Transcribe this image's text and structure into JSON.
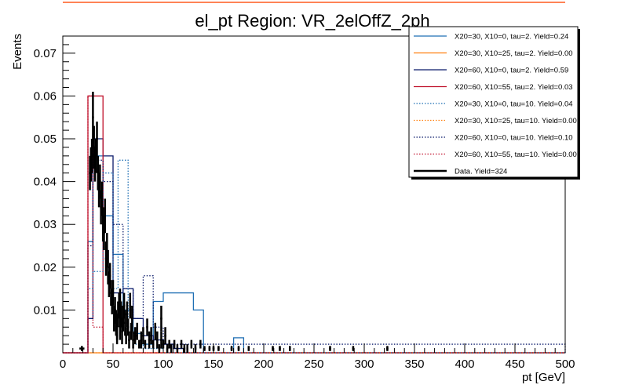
{
  "chart_data": {
    "type": "histogram",
    "title": "el_pt Region: VR_2elOffZ_2ph",
    "xlabel": "pt [GeV]",
    "ylabel": "Events",
    "xlim": [
      0,
      500
    ],
    "ylim": [
      0,
      0.074
    ],
    "xticks": [
      0,
      50,
      100,
      150,
      200,
      250,
      300,
      350,
      400,
      450,
      500
    ],
    "yticks": [
      0.01,
      0.02,
      0.03,
      0.04,
      0.05,
      0.06,
      0.07
    ],
    "ytick_labels": [
      "0.01",
      "0.02",
      "0.03",
      "0.04",
      "0.05",
      "0.06",
      "0.07"
    ],
    "legend_position": "top-right",
    "series": [
      {
        "name": "X20=30, X10=0, tau=2. Yield=0.24",
        "color": "#1f6fb4",
        "style": "solid",
        "edges": [
          0,
          25,
          30,
          40,
          50,
          60,
          70,
          80,
          90,
          100,
          130,
          140,
          170,
          180,
          500
        ],
        "values": [
          0,
          0.026,
          0.046,
          0.032,
          0.023,
          0.01,
          0.0045,
          0.002,
          0.012,
          0.014,
          0.01,
          0,
          0.0035,
          0
        ]
      },
      {
        "name": "X20=30, X10=25, tau=2. Yield=0.00",
        "color": "#ff7f0e",
        "style": "solid",
        "edges": [
          0,
          500
        ],
        "values": [
          0
        ]
      },
      {
        "name": "X20=60, X10=0, tau=2. Yield=0.59",
        "color": "#0a1a6a",
        "style": "solid",
        "edges": [
          0,
          25,
          30,
          40,
          50,
          60,
          70,
          80,
          90,
          100,
          110,
          120,
          500
        ],
        "values": [
          0,
          0.008,
          0.05,
          0.046,
          0.014,
          0.015,
          0.008,
          0.004,
          0.003,
          0.002,
          0.001,
          0
        ]
      },
      {
        "name": "X20=60, X10=55, tau=2. Yield=0.03",
        "color": "#c0122c",
        "style": "solid",
        "edges": [
          0,
          25,
          40,
          500
        ],
        "values": [
          0,
          0.06,
          0
        ]
      },
      {
        "name": "X20=30, X10=0, tau=10. Yield=0.04",
        "color": "#1f6fb4",
        "style": "dotted",
        "edges": [
          0,
          25,
          30,
          40,
          50,
          55,
          60,
          65,
          70,
          80,
          90,
          100,
          500
        ],
        "values": [
          0,
          0.015,
          0.019,
          0.042,
          0.015,
          0.045,
          0.045,
          0.006,
          0.002,
          0.001,
          0.001,
          0
        ]
      },
      {
        "name": "X20=30, X10=25, tau=10. Yield=0.00",
        "color": "#ff7f0e",
        "style": "dotted",
        "edges": [
          0,
          500
        ],
        "values": [
          0
        ]
      },
      {
        "name": "X20=60, X10=0, tau=10. Yield=0.10",
        "color": "#0a1a6a",
        "style": "dotted",
        "edges": [
          0,
          25,
          30,
          40,
          50,
          60,
          70,
          80,
          90,
          100,
          500
        ],
        "values": [
          0,
          0.025,
          0.045,
          0.04,
          0.03,
          0.015,
          0.008,
          0.018,
          0.006,
          0.002,
          0
        ]
      },
      {
        "name": "X20=60, X10=55, tau=10. Yield=0.00",
        "color": "#c0122c",
        "style": "dotted",
        "edges": [
          0,
          25,
          30,
          40,
          500
        ],
        "values": [
          0,
          0.06,
          0.006,
          0
        ]
      },
      {
        "name": "Data. Yield=324",
        "color": "#000000",
        "style": "points",
        "points": [
          [
            19,
            0.001,
            0,
            2.5
          ],
          [
            27,
            0.042,
            0.004,
            1
          ],
          [
            28,
            0.044,
            0.004,
            1
          ],
          [
            29,
            0.046,
            0.004,
            1
          ],
          [
            30,
            0.055,
            0.006,
            1
          ],
          [
            31,
            0.048,
            0.005,
            1
          ],
          [
            32,
            0.044,
            0.004,
            1
          ],
          [
            33,
            0.046,
            0.004,
            1
          ],
          [
            34,
            0.05,
            0.004,
            1
          ],
          [
            35,
            0.042,
            0.004,
            1
          ],
          [
            36,
            0.038,
            0.004,
            1
          ],
          [
            37,
            0.04,
            0.004,
            1
          ],
          [
            38,
            0.034,
            0.004,
            1
          ],
          [
            39,
            0.036,
            0.004,
            1
          ],
          [
            40,
            0.03,
            0.004,
            1
          ],
          [
            41,
            0.028,
            0.004,
            1
          ],
          [
            42,
            0.032,
            0.004,
            1
          ],
          [
            43,
            0.022,
            0.004,
            1
          ],
          [
            44,
            0.024,
            0.004,
            1
          ],
          [
            45,
            0.02,
            0.004,
            1
          ],
          [
            46,
            0.016,
            0.003,
            1
          ],
          [
            47,
            0.018,
            0.003,
            1
          ],
          [
            48,
            0.014,
            0.003,
            1
          ],
          [
            49,
            0.012,
            0.003,
            1
          ],
          [
            50,
            0.014,
            0.003,
            1
          ],
          [
            51,
            0.008,
            0.003,
            1
          ],
          [
            52,
            0.01,
            0.003,
            1
          ],
          [
            53,
            0.007,
            0.003,
            1
          ],
          [
            54,
            0.006,
            0.003,
            1
          ],
          [
            55,
            0.009,
            0.003,
            1
          ],
          [
            56,
            0.011,
            0.003,
            1
          ],
          [
            57,
            0.006,
            0.003,
            1
          ],
          [
            58,
            0.009,
            0.003,
            1
          ],
          [
            59,
            0.005,
            0.003,
            1
          ],
          [
            60,
            0.008,
            0.003,
            1
          ],
          [
            61,
            0.011,
            0.003,
            1
          ],
          [
            62,
            0.007,
            0.003,
            1
          ],
          [
            63,
            0.004,
            0.002,
            1
          ],
          [
            64,
            0.009,
            0.003,
            1
          ],
          [
            65,
            0.006,
            0.002,
            1
          ],
          [
            66,
            0.003,
            0.002,
            1
          ],
          [
            67,
            0.011,
            0.003,
            1
          ],
          [
            68,
            0.005,
            0.002,
            1
          ],
          [
            70,
            0.003,
            0.002,
            1
          ],
          [
            72,
            0.004,
            0.002,
            1
          ],
          [
            74,
            0.005,
            0.002,
            1
          ],
          [
            76,
            0.002,
            0.001,
            1
          ],
          [
            78,
            0.003,
            0.002,
            1
          ],
          [
            80,
            0.004,
            0.002,
            1
          ],
          [
            82,
            0.002,
            0.001,
            1
          ],
          [
            84,
            0.006,
            0.002,
            1
          ],
          [
            86,
            0.003,
            0.002,
            1
          ],
          [
            88,
            0.004,
            0.002,
            1
          ],
          [
            90,
            0.002,
            0.001,
            1
          ],
          [
            92,
            0.005,
            0.002,
            1
          ],
          [
            94,
            0.003,
            0.002,
            1
          ],
          [
            96,
            0.001,
            0.001,
            1
          ],
          [
            98,
            0.003,
            0.002,
            1
          ],
          [
            100,
            0.002,
            0.001,
            1
          ],
          [
            102,
            0.004,
            0.002,
            1
          ],
          [
            104,
            0.001,
            0.001,
            1
          ],
          [
            106,
            0.002,
            0.001,
            1
          ],
          [
            108,
            0.001,
            0.001,
            1
          ],
          [
            111,
            0.002,
            0.001,
            1
          ],
          [
            114,
            0.001,
            0.001,
            1
          ],
          [
            118,
            0.002,
            0.001,
            1
          ],
          [
            121,
            0.001,
            0.001,
            1
          ],
          [
            124,
            0.001,
            0.001,
            1
          ],
          [
            128,
            0.002,
            0.001,
            1
          ],
          [
            132,
            0.001,
            0.001,
            1
          ],
          [
            137,
            0.002,
            0.001,
            1
          ],
          [
            141,
            0.001,
            0,
            1
          ],
          [
            146,
            0.001,
            0,
            1
          ],
          [
            150,
            0.001,
            0,
            1
          ],
          [
            155,
            0.001,
            0,
            1
          ],
          [
            168,
            0.001,
            0,
            1
          ],
          [
            175,
            0.001,
            0,
            1
          ],
          [
            185,
            0.001,
            0,
            1
          ],
          [
            209,
            0.001,
            0,
            1
          ],
          [
            216,
            0.001,
            0,
            1
          ],
          [
            226,
            0.001,
            0,
            1
          ],
          [
            266,
            0.001,
            0,
            1
          ],
          [
            289,
            0.001,
            0,
            1
          ],
          [
            323,
            0.001,
            0,
            1
          ],
          [
            98,
            0.008,
            0.003,
            1
          ],
          [
            54,
            0.004,
            0.002,
            1
          ],
          [
            69,
            0.008,
            0.003,
            1
          ],
          [
            57,
            0.012,
            0.003,
            1
          ]
        ]
      }
    ]
  }
}
